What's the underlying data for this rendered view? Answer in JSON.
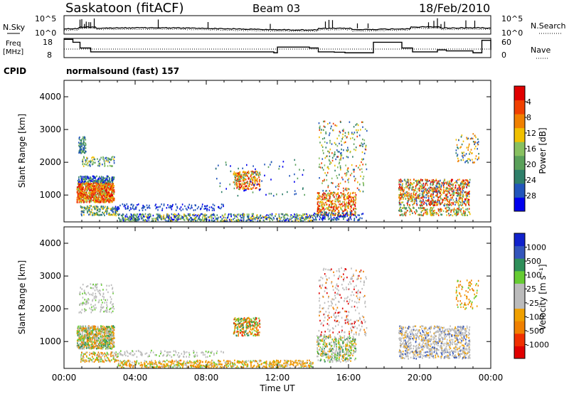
{
  "header": {
    "station": "Saskatoon (fitACF)",
    "beam": "Beam 03",
    "date": "18/Feb/2010"
  },
  "nsky": {
    "label": "N.Sky",
    "ticks": [
      "10^5",
      "10^0"
    ],
    "right_ticks": [
      "10^5",
      "10^0"
    ],
    "right_label": "N.Search"
  },
  "freq": {
    "label_lines": [
      "Freq",
      "[MHz]"
    ],
    "ticks": [
      "18",
      "8"
    ],
    "right_ticks": [
      "60",
      "0"
    ],
    "right_label": "Nave"
  },
  "cpid": {
    "label": "CPID",
    "text": "normalsound (fast) 157"
  },
  "colors": {
    "power": [
      "#0000ee",
      "#2255bb",
      "#2f7f6a",
      "#5aa05a",
      "#88c060",
      "#f0c000",
      "#f08000",
      "#f04000",
      "#e00000"
    ],
    "velocity": [
      "#e00000",
      "#f03000",
      "#f08000",
      "#f0a000",
      "#bbbbbb",
      "#bbbbbb",
      "#66cc33",
      "#2f8f5a",
      "#3355bb",
      "#1122cc"
    ],
    "grey_scatter": "#bcbcbc"
  },
  "chart_data": [
    {
      "type": "line",
      "name": "nsky-panel",
      "x_range_hours": [
        0,
        24
      ],
      "ylim_log10": [
        0,
        5
      ],
      "series_style": "step line near baseline with spikes"
    },
    {
      "type": "line",
      "name": "frequency-panel",
      "ylabel": "Freq [MHz]",
      "ylim": [
        8,
        18
      ],
      "series": [
        {
          "name": "Freq",
          "x": [
            0.0,
            0.5,
            0.9,
            1.5,
            11.8,
            12.0,
            13.8,
            14.3,
            15.2,
            15.8,
            17.4,
            19.0,
            19.6,
            21.0,
            21.5,
            23.0,
            23.5,
            24.0
          ],
          "y": [
            17.5,
            16.0,
            13.0,
            11.0,
            10.5,
            13.5,
            13.0,
            11.0,
            10.8,
            10.5,
            16.0,
            13.0,
            11.0,
            12.0,
            11.5,
            10.5,
            17.0,
            12.0
          ]
        }
      ]
    },
    {
      "type": "heatmap",
      "name": "power-panel",
      "xlabel": "",
      "ylabel": "Slant Range [km]",
      "xlim_hours": [
        0,
        24
      ],
      "ylim": [
        180,
        4500
      ],
      "xticks": [
        "00:00",
        "04:00",
        "08:00",
        "12:00",
        "16:00",
        "20:00",
        "00:00"
      ],
      "yticks": [
        "1000",
        "2000",
        "3000",
        "4000"
      ],
      "colorbar": {
        "label": "Power [dB]",
        "ticks": [
          "4",
          "8",
          "12",
          "16",
          "20",
          "24",
          "28"
        ]
      }
    },
    {
      "type": "heatmap",
      "name": "velocity-panel",
      "xlabel": "Time UT",
      "ylabel": "Slant Range [km]",
      "xlim_hours": [
        0,
        24
      ],
      "ylim": [
        180,
        4500
      ],
      "xticks": [
        "00:00",
        "04:00",
        "08:00",
        "12:00",
        "16:00",
        "20:00",
        "00:00"
      ],
      "yticks": [
        "1000",
        "2000",
        "3000",
        "4000"
      ],
      "colorbar": {
        "label": "Velocity [m s⁻¹]",
        "ticks": [
          "1000",
          "500",
          "100",
          "25",
          "-25",
          "-100",
          "-500",
          "-1000"
        ]
      }
    }
  ]
}
